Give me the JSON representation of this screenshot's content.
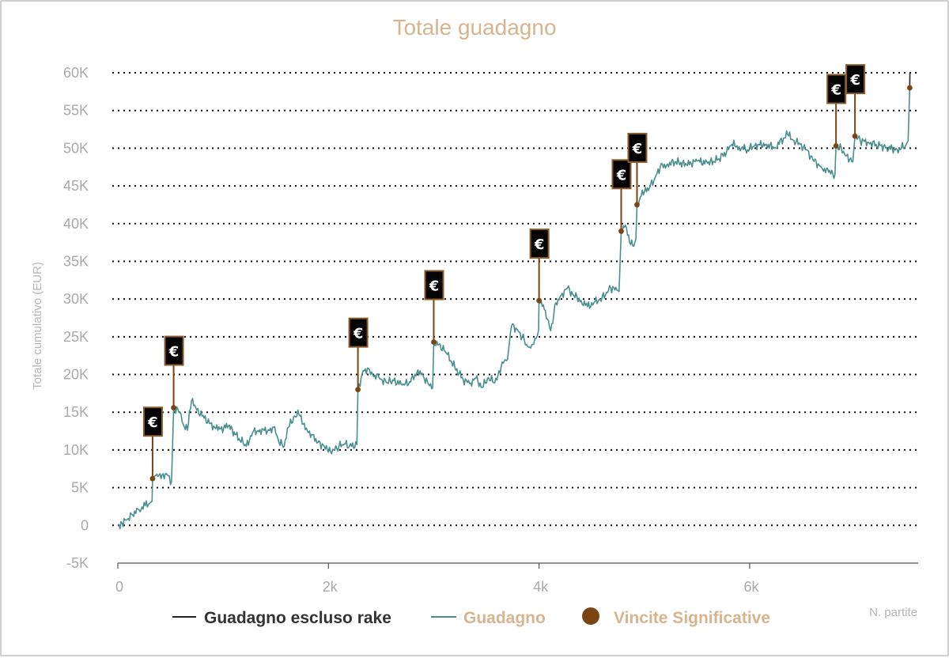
{
  "chart_data": {
    "type": "line",
    "title": "Totale guadagno",
    "xlabel": "N. partite",
    "ylabel": "Totale cumulativo (EUR)",
    "xlim": [
      0,
      7600
    ],
    "ylim": [
      -5000,
      60000
    ],
    "x_ticks": [
      {
        "value": 0,
        "label": "0"
      },
      {
        "value": 2000,
        "label": "2k"
      },
      {
        "value": 4000,
        "label": "4k"
      },
      {
        "value": 6000,
        "label": "6k"
      }
    ],
    "y_ticks": [
      {
        "value": 60000,
        "label": "60K"
      },
      {
        "value": 55000,
        "label": "55K"
      },
      {
        "value": 50000,
        "label": "50K"
      },
      {
        "value": 45000,
        "label": "45K"
      },
      {
        "value": 40000,
        "label": "40K"
      },
      {
        "value": 35000,
        "label": "35K"
      },
      {
        "value": 30000,
        "label": "30K"
      },
      {
        "value": 25000,
        "label": "25K"
      },
      {
        "value": 20000,
        "label": "20K"
      },
      {
        "value": 15000,
        "label": "15K"
      },
      {
        "value": 10000,
        "label": "10K"
      },
      {
        "value": 5000,
        "label": "5K"
      },
      {
        "value": 0,
        "label": "0"
      },
      {
        "value": -5000,
        "label": "-5K"
      }
    ],
    "grid": {
      "horizontal": true,
      "style": "dotted"
    },
    "legend": [
      {
        "label": "Guadagno escluso rake",
        "kind": "line",
        "color": "#222222"
      },
      {
        "label": "Guadagno",
        "kind": "line",
        "color": "#4a8f8f"
      },
      {
        "label": "Vincite Significative",
        "kind": "dot",
        "color": "#7a4512"
      }
    ],
    "legend_position": "bottom",
    "series": [
      {
        "name": "Guadagno",
        "color": "#4a8f8f",
        "points": [
          [
            0,
            0
          ],
          [
            40,
            300
          ],
          [
            90,
            800
          ],
          [
            140,
            1400
          ],
          [
            200,
            2100
          ],
          [
            260,
            2600
          ],
          [
            300,
            2900
          ],
          [
            325,
            3200
          ],
          [
            330,
            6200
          ],
          [
            370,
            6800
          ],
          [
            410,
            6200
          ],
          [
            460,
            6900
          ],
          [
            510,
            5800
          ],
          [
            530,
            15600
          ],
          [
            590,
            15000
          ],
          [
            620,
            13400
          ],
          [
            660,
            12600
          ],
          [
            700,
            16500
          ],
          [
            740,
            15600
          ],
          [
            800,
            14500
          ],
          [
            880,
            13500
          ],
          [
            950,
            12600
          ],
          [
            1050,
            13200
          ],
          [
            1150,
            11500
          ],
          [
            1220,
            10500
          ],
          [
            1280,
            12300
          ],
          [
            1350,
            12700
          ],
          [
            1420,
            12500
          ],
          [
            1480,
            13000
          ],
          [
            1530,
            11000
          ],
          [
            1580,
            10500
          ],
          [
            1620,
            13000
          ],
          [
            1680,
            14500
          ],
          [
            1720,
            14700
          ],
          [
            1760,
            13400
          ],
          [
            1800,
            12500
          ],
          [
            1850,
            12000
          ],
          [
            1900,
            11000
          ],
          [
            1960,
            10500
          ],
          [
            2000,
            9700
          ],
          [
            2050,
            10000
          ],
          [
            2100,
            10500
          ],
          [
            2150,
            10800
          ],
          [
            2200,
            10500
          ],
          [
            2270,
            10700
          ],
          [
            2280,
            18000
          ],
          [
            2330,
            20500
          ],
          [
            2380,
            20800
          ],
          [
            2420,
            20000
          ],
          [
            2480,
            19600
          ],
          [
            2550,
            18900
          ],
          [
            2620,
            19200
          ],
          [
            2700,
            18600
          ],
          [
            2780,
            19000
          ],
          [
            2850,
            20600
          ],
          [
            2900,
            19800
          ],
          [
            2960,
            18500
          ],
          [
            2990,
            18200
          ],
          [
            3000,
            24300
          ],
          [
            3050,
            24000
          ],
          [
            3120,
            22800
          ],
          [
            3200,
            21000
          ],
          [
            3280,
            19300
          ],
          [
            3340,
            18800
          ],
          [
            3400,
            19500
          ],
          [
            3460,
            18300
          ],
          [
            3520,
            19600
          ],
          [
            3580,
            18900
          ],
          [
            3620,
            20500
          ],
          [
            3660,
            21500
          ],
          [
            3700,
            22000
          ],
          [
            3740,
            26500
          ],
          [
            3790,
            26000
          ],
          [
            3840,
            25000
          ],
          [
            3880,
            24000
          ],
          [
            3920,
            23500
          ],
          [
            3960,
            24800
          ],
          [
            3995,
            25800
          ],
          [
            4000,
            29800
          ],
          [
            4060,
            28500
          ],
          [
            4110,
            25800
          ],
          [
            4160,
            29500
          ],
          [
            4210,
            30500
          ],
          [
            4270,
            31500
          ],
          [
            4330,
            30500
          ],
          [
            4400,
            29800
          ],
          [
            4460,
            29000
          ],
          [
            4520,
            29500
          ],
          [
            4580,
            30000
          ],
          [
            4630,
            30500
          ],
          [
            4680,
            31500
          ],
          [
            4720,
            31200
          ],
          [
            4760,
            31000
          ],
          [
            4780,
            39000
          ],
          [
            4820,
            39800
          ],
          [
            4860,
            37500
          ],
          [
            4900,
            37000
          ],
          [
            4920,
            38000
          ],
          [
            4930,
            42500
          ],
          [
            4960,
            43500
          ],
          [
            5000,
            44200
          ],
          [
            5050,
            44800
          ],
          [
            5100,
            46000
          ],
          [
            5150,
            47500
          ],
          [
            5220,
            47900
          ],
          [
            5300,
            48200
          ],
          [
            5400,
            47800
          ],
          [
            5500,
            48300
          ],
          [
            5600,
            48000
          ],
          [
            5700,
            48500
          ],
          [
            5780,
            49500
          ],
          [
            5830,
            50500
          ],
          [
            5900,
            50200
          ],
          [
            5980,
            49800
          ],
          [
            6050,
            50400
          ],
          [
            6150,
            50500
          ],
          [
            6240,
            50100
          ],
          [
            6320,
            51300
          ],
          [
            6360,
            51800
          ],
          [
            6420,
            51000
          ],
          [
            6480,
            50500
          ],
          [
            6540,
            49800
          ],
          [
            6600,
            48500
          ],
          [
            6680,
            47500
          ],
          [
            6750,
            46800
          ],
          [
            6810,
            46500
          ],
          [
            6820,
            50300
          ],
          [
            6870,
            50000
          ],
          [
            6920,
            49000
          ],
          [
            6980,
            48200
          ],
          [
            7000,
            51600
          ],
          [
            7050,
            51000
          ],
          [
            7120,
            50800
          ],
          [
            7200,
            50500
          ],
          [
            7300,
            50100
          ],
          [
            7400,
            49800
          ],
          [
            7480,
            50300
          ],
          [
            7505,
            51000
          ],
          [
            7520,
            58000
          ]
        ]
      },
      {
        "name": "Guadagno escluso rake",
        "color": "#222222",
        "points": [
          [
            7520,
            58000
          ],
          [
            7522,
            60000
          ]
        ]
      }
    ],
    "significant_wins": [
      {
        "x": 330,
        "y": 6200
      },
      {
        "x": 530,
        "y": 15600
      },
      {
        "x": 2280,
        "y": 18000
      },
      {
        "x": 3000,
        "y": 24300
      },
      {
        "x": 4000,
        "y": 29800
      },
      {
        "x": 4780,
        "y": 39000
      },
      {
        "x": 4930,
        "y": 42500
      },
      {
        "x": 6820,
        "y": 50300
      },
      {
        "x": 7000,
        "y": 51600
      },
      {
        "x": 7520,
        "y": 58000
      }
    ],
    "marker_symbol": "€"
  }
}
